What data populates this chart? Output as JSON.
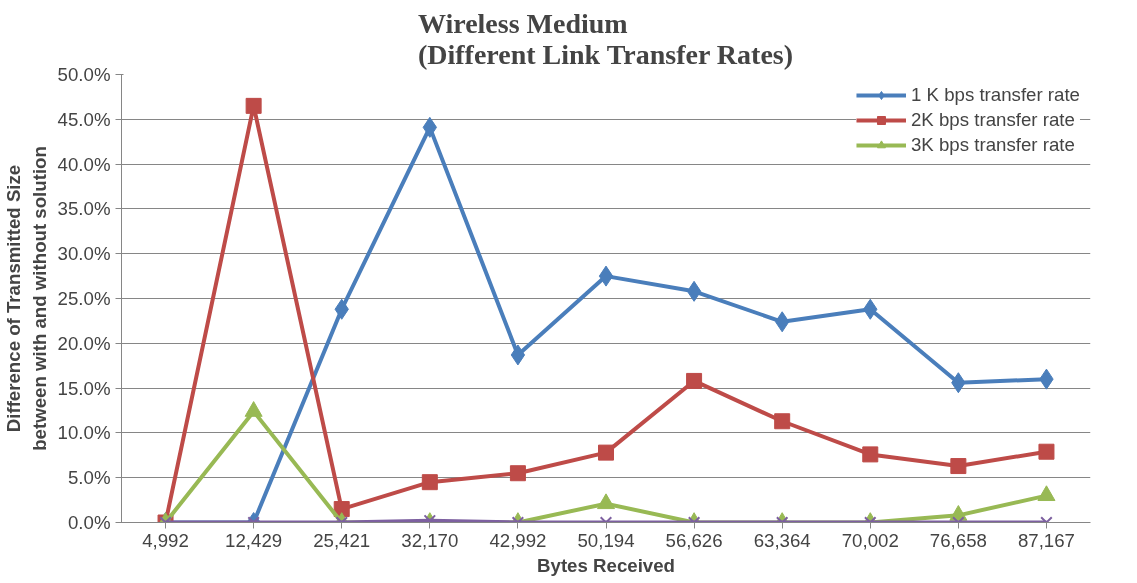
{
  "chart_data": {
    "type": "line",
    "title": "Wireless Medium\n(Different Link Transfer Rates)",
    "xlabel": "Bytes Received",
    "ylabel": "Difference of Transmitted Size\nbetween with and without solution",
    "categories": [
      "4,992",
      "12,429",
      "25,421",
      "32,170",
      "42,992",
      "50,194",
      "56,626",
      "63,364",
      "70,002",
      "76,658",
      "87,167"
    ],
    "series": [
      {
        "name": "1 K bps transfer rate",
        "color": "#4a7ebb",
        "marker": "diamond",
        "values": [
          0,
          0,
          23.8,
          44.1,
          18.7,
          27.5,
          25.8,
          22.4,
          23.8,
          15.6,
          16.0
        ]
      },
      {
        "name": "2K bps transfer rate",
        "color": "#be4b48",
        "marker": "square",
        "values": [
          0,
          46.5,
          1.5,
          4.5,
          5.5,
          7.8,
          15.8,
          11.3,
          7.6,
          6.3,
          7.9
        ]
      },
      {
        "name": "3K bps transfer rate",
        "color": "#98b954",
        "marker": "triangle",
        "values": [
          0,
          12.4,
          0,
          0,
          0,
          2.1,
          0,
          0,
          0,
          0.8,
          3.0
        ]
      },
      {
        "color": "#7d60a0",
        "marker": "cross",
        "values": [
          0,
          0,
          0,
          0.2,
          0,
          0,
          0,
          0,
          0,
          0,
          0
        ]
      }
    ],
    "ylim": [
      0,
      50
    ],
    "yticks": [
      {
        "value": 0,
        "label": "0.0%"
      },
      {
        "value": 5,
        "label": "5.0%"
      },
      {
        "value": 10,
        "label": "10.0%"
      },
      {
        "value": 15,
        "label": "15.0%"
      },
      {
        "value": 20,
        "label": "20.0%"
      },
      {
        "value": 25,
        "label": "25.0%"
      },
      {
        "value": 30,
        "label": "30.0%"
      },
      {
        "value": 35,
        "label": "35.0%"
      },
      {
        "value": 40,
        "label": "40.0%"
      },
      {
        "value": 45,
        "label": "45.0%"
      },
      {
        "value": 50,
        "label": "50.0%"
      }
    ],
    "grid": "y",
    "legend": "top right",
    "line_style": "solid"
  }
}
